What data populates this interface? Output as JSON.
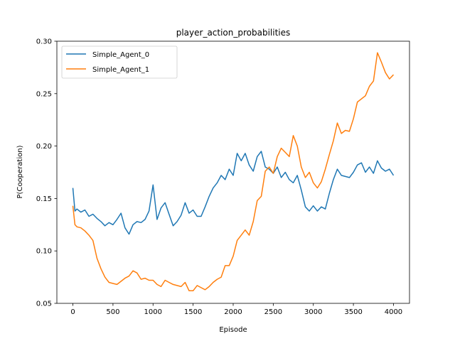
{
  "chart_data": {
    "type": "line",
    "title": "player_action_probabilities",
    "xlabel": "Episode",
    "ylabel": "P(Cooperation)",
    "xlim": [
      -200,
      4200
    ],
    "ylim": [
      0.05,
      0.3
    ],
    "xticks": [
      0,
      500,
      1000,
      1500,
      2000,
      2500,
      3000,
      3500,
      4000
    ],
    "yticks": [
      0.05,
      0.1,
      0.15,
      0.2,
      0.25,
      0.3
    ],
    "ytick_labels": [
      "0.05",
      "0.10",
      "0.15",
      "0.20",
      "0.25",
      "0.30"
    ],
    "legend_position": "upper-left",
    "grid": false,
    "series": [
      {
        "name": "Simple_Agent_0",
        "color": "#1f77b4",
        "x": [
          0,
          25,
          50,
          100,
          150,
          200,
          250,
          300,
          350,
          400,
          450,
          500,
          550,
          600,
          650,
          700,
          750,
          800,
          850,
          900,
          950,
          1000,
          1050,
          1100,
          1150,
          1200,
          1250,
          1300,
          1350,
          1400,
          1450,
          1500,
          1550,
          1600,
          1650,
          1700,
          1750,
          1800,
          1850,
          1900,
          1950,
          2000,
          2050,
          2100,
          2150,
          2200,
          2250,
          2300,
          2350,
          2400,
          2450,
          2500,
          2550,
          2600,
          2650,
          2700,
          2750,
          2800,
          2850,
          2900,
          2950,
          3000,
          3050,
          3100,
          3150,
          3200,
          3250,
          3300,
          3350,
          3400,
          3450,
          3500,
          3550,
          3600,
          3650,
          3700,
          3750,
          3800,
          3850,
          3900,
          3950,
          4000
        ],
        "y": [
          0.16,
          0.138,
          0.14,
          0.137,
          0.139,
          0.133,
          0.135,
          0.131,
          0.128,
          0.124,
          0.127,
          0.125,
          0.13,
          0.136,
          0.122,
          0.116,
          0.125,
          0.128,
          0.127,
          0.13,
          0.138,
          0.163,
          0.13,
          0.141,
          0.146,
          0.135,
          0.124,
          0.128,
          0.134,
          0.146,
          0.136,
          0.139,
          0.133,
          0.133,
          0.142,
          0.152,
          0.16,
          0.165,
          0.172,
          0.168,
          0.178,
          0.172,
          0.193,
          0.186,
          0.193,
          0.182,
          0.176,
          0.19,
          0.195,
          0.18,
          0.178,
          0.174,
          0.18,
          0.17,
          0.175,
          0.168,
          0.165,
          0.172,
          0.158,
          0.142,
          0.138,
          0.143,
          0.138,
          0.142,
          0.14,
          0.155,
          0.168,
          0.178,
          0.172,
          0.171,
          0.17,
          0.175,
          0.182,
          0.184,
          0.175,
          0.18,
          0.174,
          0.186,
          0.179,
          0.176,
          0.178,
          0.172
        ]
      },
      {
        "name": "Simple_Agent_1",
        "color": "#ff7f0e",
        "x": [
          0,
          25,
          50,
          100,
          150,
          200,
          250,
          300,
          350,
          400,
          450,
          500,
          550,
          600,
          650,
          700,
          750,
          800,
          850,
          900,
          950,
          1000,
          1050,
          1100,
          1150,
          1200,
          1250,
          1300,
          1350,
          1400,
          1450,
          1500,
          1550,
          1600,
          1650,
          1700,
          1750,
          1800,
          1850,
          1900,
          1950,
          2000,
          2050,
          2100,
          2150,
          2200,
          2250,
          2300,
          2350,
          2400,
          2450,
          2500,
          2550,
          2600,
          2650,
          2700,
          2750,
          2800,
          2850,
          2900,
          2950,
          3000,
          3050,
          3100,
          3150,
          3200,
          3250,
          3300,
          3350,
          3400,
          3450,
          3500,
          3550,
          3600,
          3650,
          3700,
          3750,
          3800,
          3850,
          3900,
          3950,
          4000
        ],
        "y": [
          0.143,
          0.125,
          0.123,
          0.122,
          0.119,
          0.115,
          0.11,
          0.093,
          0.083,
          0.075,
          0.07,
          0.069,
          0.068,
          0.071,
          0.074,
          0.076,
          0.081,
          0.079,
          0.073,
          0.074,
          0.072,
          0.072,
          0.068,
          0.066,
          0.072,
          0.07,
          0.068,
          0.067,
          0.066,
          0.07,
          0.062,
          0.062,
          0.067,
          0.065,
          0.063,
          0.066,
          0.07,
          0.073,
          0.075,
          0.086,
          0.086,
          0.095,
          0.11,
          0.115,
          0.12,
          0.115,
          0.128,
          0.148,
          0.152,
          0.176,
          0.18,
          0.174,
          0.19,
          0.198,
          0.194,
          0.19,
          0.21,
          0.2,
          0.18,
          0.17,
          0.175,
          0.165,
          0.16,
          0.166,
          0.178,
          0.192,
          0.205,
          0.222,
          0.212,
          0.215,
          0.214,
          0.226,
          0.242,
          0.245,
          0.248,
          0.257,
          0.262,
          0.289,
          0.28,
          0.27,
          0.264,
          0.268
        ]
      }
    ]
  }
}
